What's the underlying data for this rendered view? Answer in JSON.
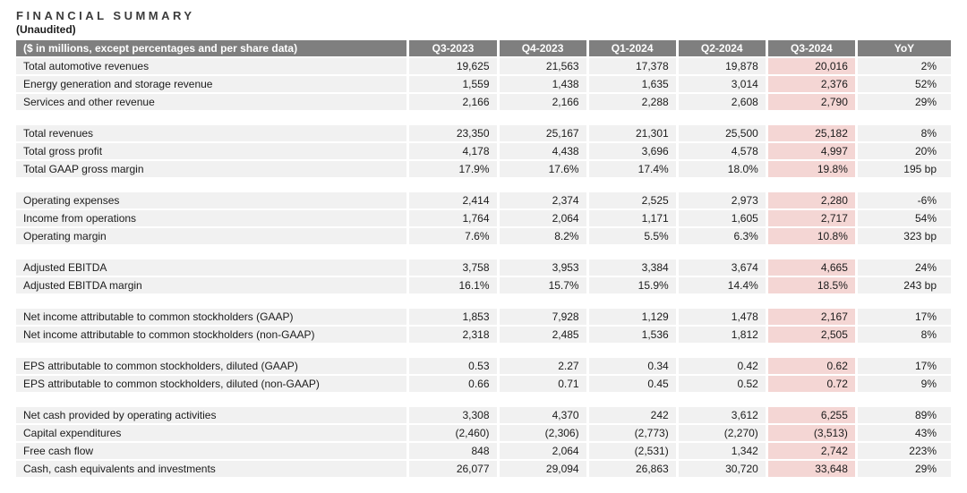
{
  "page": {
    "title": "FINANCIAL SUMMARY",
    "subtitle": "(Unaudited)"
  },
  "colors": {
    "header_bg": "#7f7f7f",
    "header_text": "#ffffff",
    "row_bg": "#f1f1f1",
    "highlight_bg": "#f4d6d4",
    "body_text": "#1b1b1b",
    "title_text": "#3c3c3c"
  },
  "table": {
    "columns": [
      "($ in millions, except percentages and per share data)",
      "Q3-2023",
      "Q4-2023",
      "Q1-2024",
      "Q2-2024",
      "Q3-2024",
      "YoY"
    ],
    "highlight_column": "Q3-2024",
    "highlight_column_index": 5,
    "sections": [
      {
        "rows": [
          {
            "label": "Total automotive revenues",
            "values": [
              "19,625",
              "21,563",
              "17,378",
              "19,878",
              "20,016",
              "2%"
            ]
          },
          {
            "label": "Energy generation and storage revenue",
            "values": [
              "1,559",
              "1,438",
              "1,635",
              "3,014",
              "2,376",
              "52%"
            ]
          },
          {
            "label": "Services and other revenue",
            "values": [
              "2,166",
              "2,166",
              "2,288",
              "2,608",
              "2,790",
              "29%"
            ]
          }
        ]
      },
      {
        "rows": [
          {
            "label": "Total revenues",
            "values": [
              "23,350",
              "25,167",
              "21,301",
              "25,500",
              "25,182",
              "8%"
            ]
          },
          {
            "label": "Total gross profit",
            "values": [
              "4,178",
              "4,438",
              "3,696",
              "4,578",
              "4,997",
              "20%"
            ]
          },
          {
            "label": "Total GAAP gross margin",
            "values": [
              "17.9%",
              "17.6%",
              "17.4%",
              "18.0%",
              "19.8%",
              "195 bp"
            ]
          }
        ]
      },
      {
        "rows": [
          {
            "label": "Operating expenses",
            "values": [
              "2,414",
              "2,374",
              "2,525",
              "2,973",
              "2,280",
              "-6%"
            ]
          },
          {
            "label": "Income from operations",
            "values": [
              "1,764",
              "2,064",
              "1,171",
              "1,605",
              "2,717",
              "54%"
            ]
          },
          {
            "label": "Operating margin",
            "values": [
              "7.6%",
              "8.2%",
              "5.5%",
              "6.3%",
              "10.8%",
              "323 bp"
            ]
          }
        ]
      },
      {
        "rows": [
          {
            "label": "Adjusted EBITDA",
            "values": [
              "3,758",
              "3,953",
              "3,384",
              "3,674",
              "4,665",
              "24%"
            ]
          },
          {
            "label": "Adjusted EBITDA margin",
            "values": [
              "16.1%",
              "15.7%",
              "15.9%",
              "14.4%",
              "18.5%",
              "243 bp"
            ]
          }
        ]
      },
      {
        "rows": [
          {
            "label": "Net income attributable to common stockholders (GAAP)",
            "values": [
              "1,853",
              "7,928",
              "1,129",
              "1,478",
              "2,167",
              "17%"
            ]
          },
          {
            "label": "Net income attributable to common stockholders (non-GAAP)",
            "values": [
              "2,318",
              "2,485",
              "1,536",
              "1,812",
              "2,505",
              "8%"
            ]
          }
        ]
      },
      {
        "rows": [
          {
            "label": "EPS attributable to common stockholders, diluted (GAAP)",
            "values": [
              "0.53",
              "2.27",
              "0.34",
              "0.42",
              "0.62",
              "17%"
            ]
          },
          {
            "label": "EPS attributable to common stockholders, diluted (non-GAAP)",
            "values": [
              "0.66",
              "0.71",
              "0.45",
              "0.52",
              "0.72",
              "9%"
            ]
          }
        ]
      },
      {
        "rows": [
          {
            "label": "Net cash provided by operating activities",
            "values": [
              "3,308",
              "4,370",
              "242",
              "3,612",
              "6,255",
              "89%"
            ]
          },
          {
            "label": "Capital expenditures",
            "values": [
              "(2,460)",
              "(2,306)",
              "(2,773)",
              "(2,270)",
              "(3,513)",
              "43%"
            ]
          },
          {
            "label": "Free cash flow",
            "values": [
              "848",
              "2,064",
              "(2,531)",
              "1,342",
              "2,742",
              "223%"
            ]
          },
          {
            "label": "Cash, cash equivalents and investments",
            "values": [
              "26,077",
              "29,094",
              "26,863",
              "30,720",
              "33,648",
              "29%"
            ]
          }
        ]
      }
    ]
  }
}
